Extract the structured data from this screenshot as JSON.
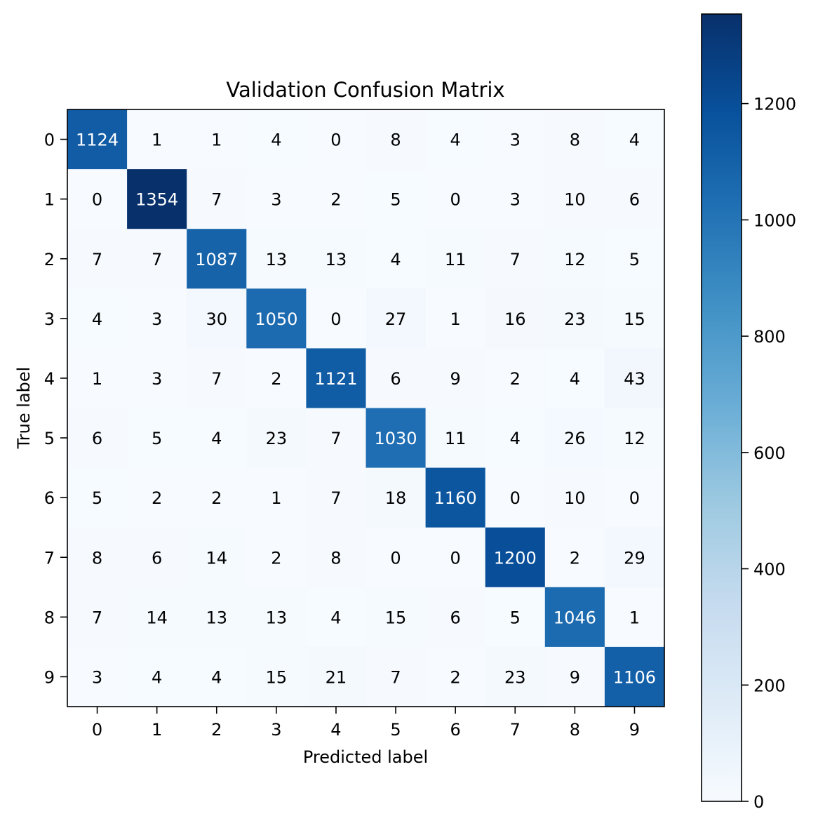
{
  "chart_data": {
    "type": "heatmap",
    "title": "Validation Confusion Matrix",
    "xlabel": "Predicted label",
    "ylabel": "True label",
    "x_categories": [
      "0",
      "1",
      "2",
      "3",
      "4",
      "5",
      "6",
      "7",
      "8",
      "9"
    ],
    "y_categories": [
      "0",
      "1",
      "2",
      "3",
      "4",
      "5",
      "6",
      "7",
      "8",
      "9"
    ],
    "values": [
      [
        1124,
        1,
        1,
        4,
        0,
        8,
        4,
        3,
        8,
        4
      ],
      [
        0,
        1354,
        7,
        3,
        2,
        5,
        0,
        3,
        10,
        6
      ],
      [
        7,
        7,
        1087,
        13,
        13,
        4,
        11,
        7,
        12,
        5
      ],
      [
        4,
        3,
        30,
        1050,
        0,
        27,
        1,
        16,
        23,
        15
      ],
      [
        1,
        3,
        7,
        2,
        1121,
        6,
        9,
        2,
        4,
        43
      ],
      [
        6,
        5,
        4,
        23,
        7,
        1030,
        11,
        4,
        26,
        12
      ],
      [
        5,
        2,
        2,
        1,
        7,
        18,
        1160,
        0,
        10,
        0
      ],
      [
        8,
        6,
        14,
        2,
        8,
        0,
        0,
        1200,
        2,
        29
      ],
      [
        7,
        14,
        13,
        13,
        4,
        15,
        6,
        5,
        1046,
        1
      ],
      [
        3,
        4,
        4,
        15,
        21,
        7,
        2,
        23,
        9,
        1106
      ]
    ],
    "colormap": "Blues",
    "colormap_stops": [
      "#f7fbff",
      "#deebf7",
      "#c6dbef",
      "#9ecae1",
      "#6baed6",
      "#4292c6",
      "#2171b5",
      "#08519c",
      "#08306b"
    ],
    "color_range": [
      0,
      1354
    ],
    "colorbar_ticks": [
      0,
      200,
      400,
      600,
      800,
      1000,
      1200
    ],
    "text_color_light": "#ffffff",
    "text_color_dark": "#000000",
    "text_threshold": 677
  }
}
